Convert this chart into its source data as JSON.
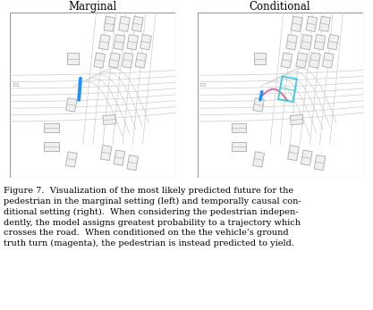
{
  "title_left": "Marginal",
  "title_right": "Conditional",
  "caption": "Figure 7.  Visualization of the most likely predicted future for the\npedestrian in the marginal setting (left) and temporally causal con-\nditional setting (right).  When considering the pedestrian indepen-\ndently, the model assigns greatest probability to a trajectory which\ncrosses the road.  When conditioned on the the vehicle’s ground\ntruth turn (magenta), the pedestrian is instead predicted to yield.",
  "bg_color": "#ffffff",
  "road_line_color": "#cccccc",
  "car_face_color": "#f0f0f0",
  "car_edge_color": "#aaaaaa",
  "blue_traj_color": "#1e90ff",
  "magenta_traj_color": "#e060a0",
  "cyan_box_color": "#40c8e0",
  "fig_width": 4.17,
  "fig_height": 3.47,
  "dpi": 100,
  "caption_fontsize": 7.0,
  "title_fontsize": 8.5
}
